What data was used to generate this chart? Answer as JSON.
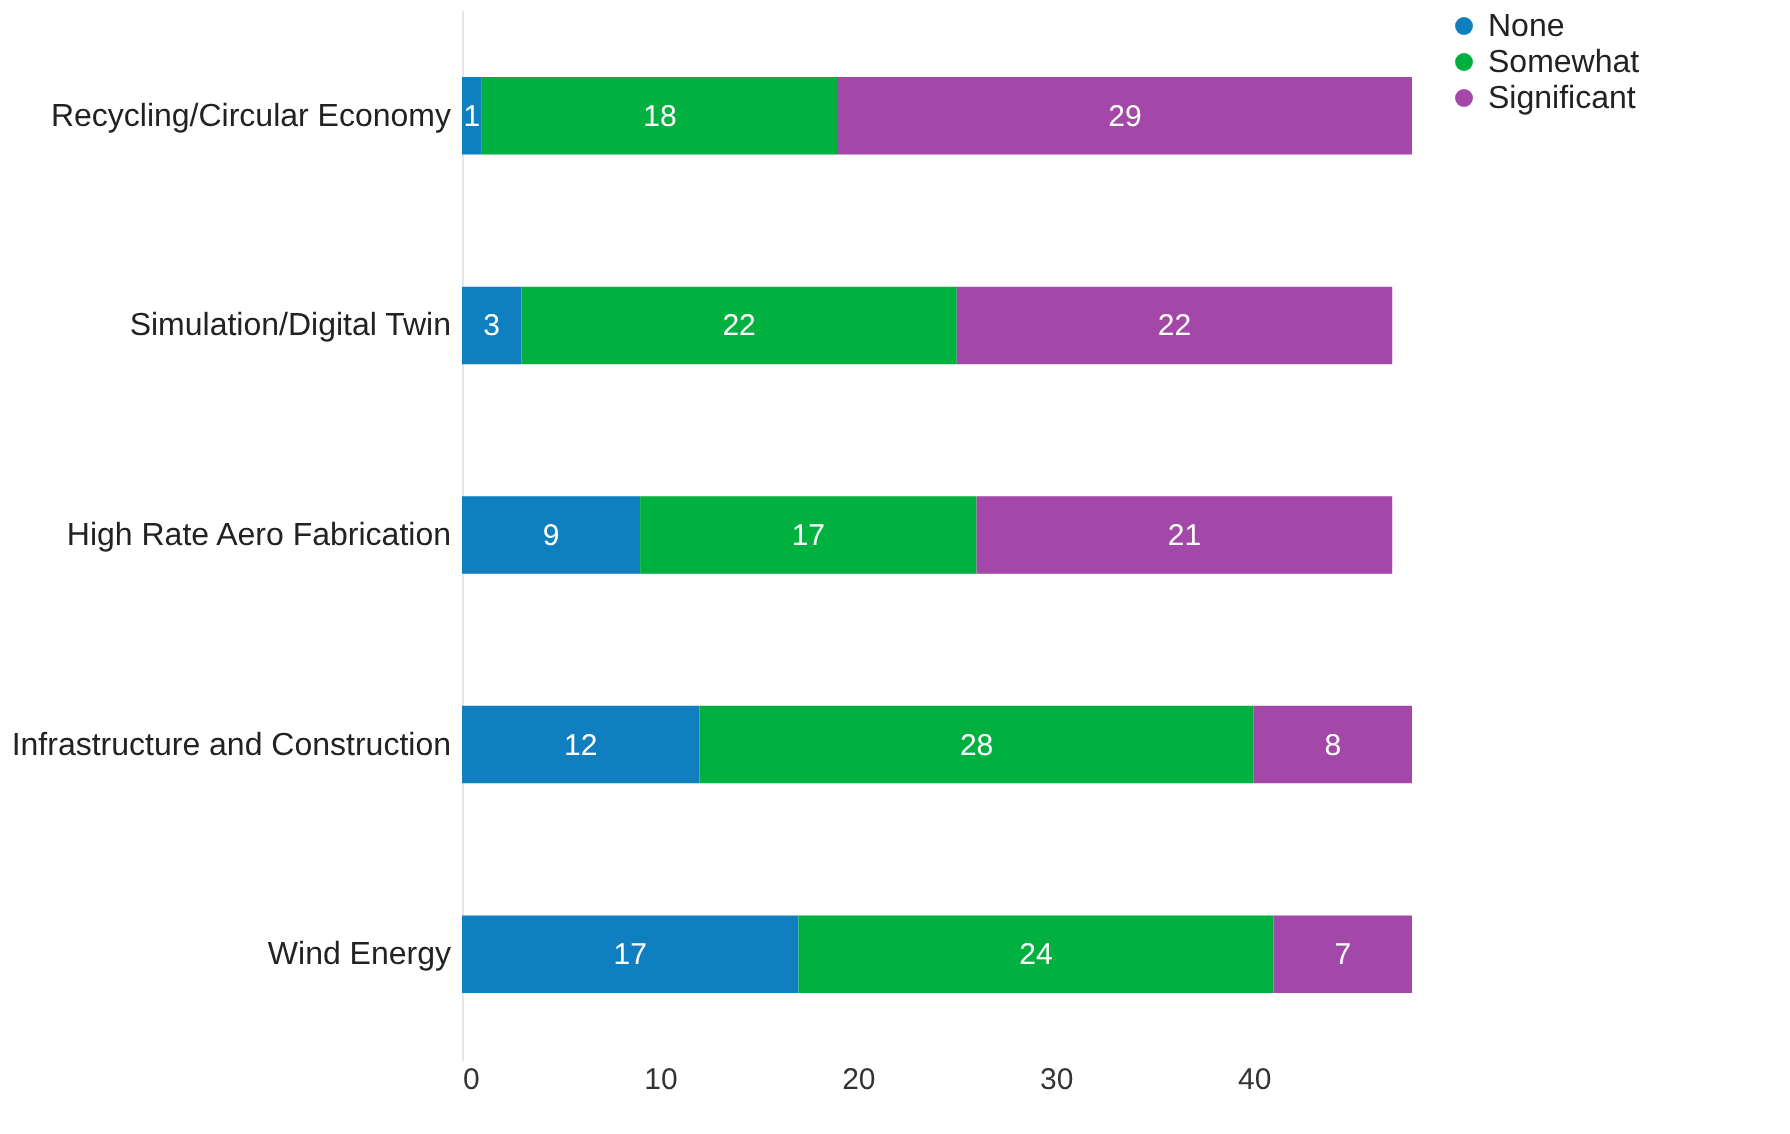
{
  "chart_data": {
    "type": "bar",
    "orientation": "horizontal",
    "stacked": true,
    "data_labels": true,
    "legend": "right",
    "grid": false,
    "categories": [
      "Recycling/Circular Economy",
      "Simulation/Digital Twin",
      "High Rate Aero Fabrication",
      "Infrastructure and Construction",
      "Wind Energy"
    ],
    "xlim": [
      0,
      48
    ],
    "xticks": [
      0,
      10,
      20,
      30,
      40
    ],
    "series": [
      {
        "name": "None",
        "color": "#0f7fc0",
        "values": [
          1,
          3,
          9,
          12,
          17
        ]
      },
      {
        "name": "Somewhat",
        "color": "#00b140",
        "values": [
          18,
          22,
          17,
          28,
          24
        ]
      },
      {
        "name": "Significant",
        "color": "#a347a8",
        "values": [
          29,
          22,
          21,
          8,
          7
        ]
      }
    ]
  }
}
